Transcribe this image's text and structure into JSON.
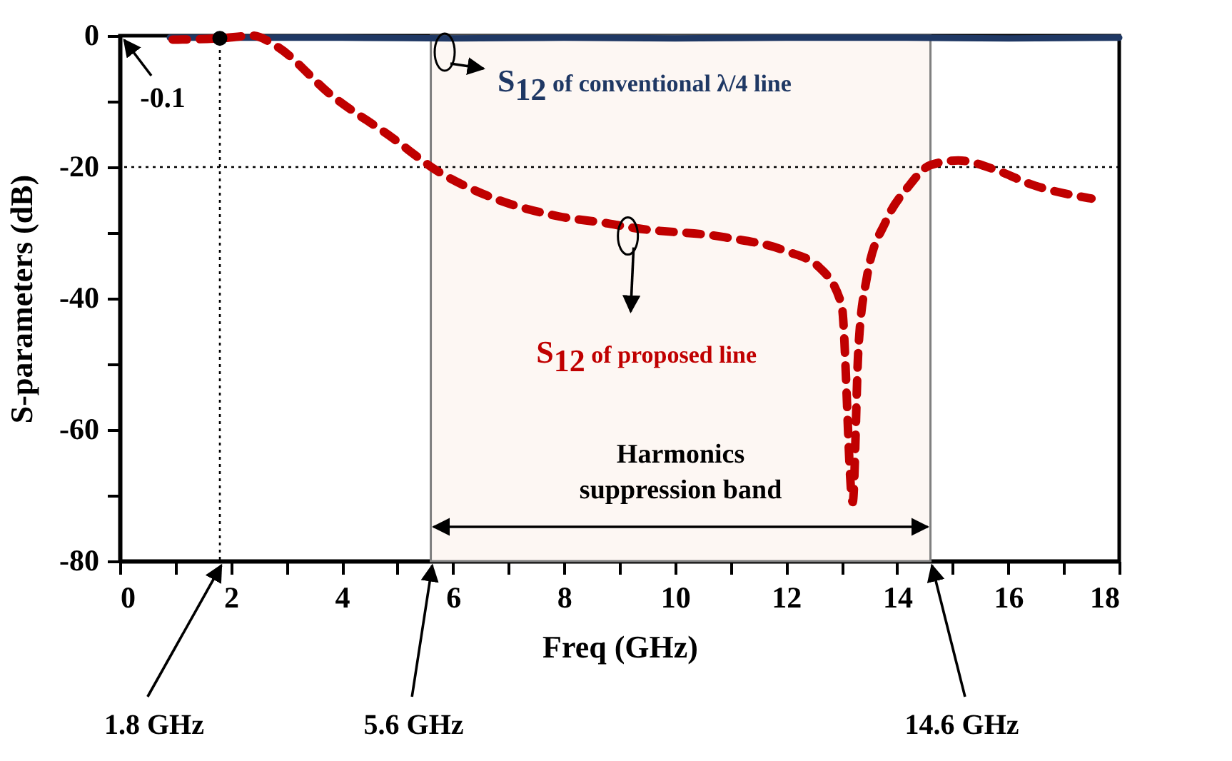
{
  "chart_data": {
    "type": "line",
    "xlabel": "Freq (GHz)",
    "ylabel": "S-parameters (dB)",
    "xlim": [
      0,
      18
    ],
    "ylim": [
      -80,
      0
    ],
    "xticks": [
      0,
      {
        "value": 1,
        "label": null
      },
      2,
      {
        "value": 3,
        "label": null
      },
      4,
      {
        "value": 5,
        "label": null
      },
      6,
      {
        "value": 7,
        "label": null
      },
      8,
      {
        "value": 9,
        "label": null
      },
      10,
      {
        "value": 11,
        "label": null
      },
      12,
      {
        "value": 13,
        "label": null
      },
      14,
      {
        "value": 15,
        "label": null
      },
      16,
      {
        "value": 17,
        "label": null
      },
      18
    ],
    "yticks": [
      -80,
      {
        "value": -70,
        "label": null
      },
      -60,
      {
        "value": -50,
        "label": null
      },
      -40,
      {
        "value": -30,
        "label": null
      },
      -20,
      {
        "value": -10,
        "label": null
      },
      0
    ],
    "grid": false,
    "legend": false,
    "series": [
      {
        "name": "S$_{12}$ of conventional λ/4 line",
        "color": "#1f3864",
        "line_style": "solid",
        "x": [
          0.9,
          2,
          4,
          6,
          8,
          10,
          12,
          14,
          16,
          18
        ],
        "values": [
          -0.3,
          -0.3,
          -0.3,
          -0.4,
          -0.3,
          -0.4,
          -0.3,
          -0.3,
          -0.4,
          -0.3
        ]
      },
      {
        "name": "S$_{12}$ of proposed line",
        "color": "#c00000",
        "line_style": "dashed",
        "x": [
          0.95,
          1.8,
          2.4,
          2.8,
          3.8,
          4.9,
          5.7,
          6.6,
          7.9,
          8.8,
          9.2,
          10.9,
          12,
          12.6,
          13,
          13.2,
          13.3,
          13.45,
          13.8,
          14.2,
          14.6,
          15.1,
          15.8,
          16.4,
          17.5
        ],
        "values": [
          -0.6,
          -0.4,
          0,
          -1.5,
          -9,
          -15.5,
          -20.5,
          -24.3,
          -27.5,
          -28.6,
          -29.2,
          -30.7,
          -32.8,
          -35.3,
          -41,
          -71,
          -48,
          -37,
          -28.2,
          -23,
          -19.7,
          -19,
          -20.5,
          -22.6,
          -24.8
        ]
      },
      {
        "type": "scatter",
        "color": "#000000",
        "marker": "circle",
        "x": [
          1.8
        ],
        "values": [
          -0.4
        ]
      }
    ],
    "ref_lines": [
      {
        "axis": "x",
        "value": 1.8,
        "line_style": "dotted",
        "color": "#000000"
      },
      {
        "axis": "y",
        "value": -20,
        "line_style": "dotted",
        "color": "#000000"
      }
    ],
    "bands": [
      {
        "axis": "x",
        "from": 5.6,
        "to": 14.6,
        "label": "Harmonics suppression band",
        "color": "#fdf7f3"
      }
    ],
    "annotations": [
      "-0.1",
      {
        "text": "1.8 GHz",
        "x": 1.8,
        "y": -80
      },
      {
        "text": "5.6 GHz",
        "x": 5.6,
        "y": -80
      },
      {
        "text": "14.6 GHz",
        "x": 14.6,
        "y": -80
      }
    ]
  }
}
